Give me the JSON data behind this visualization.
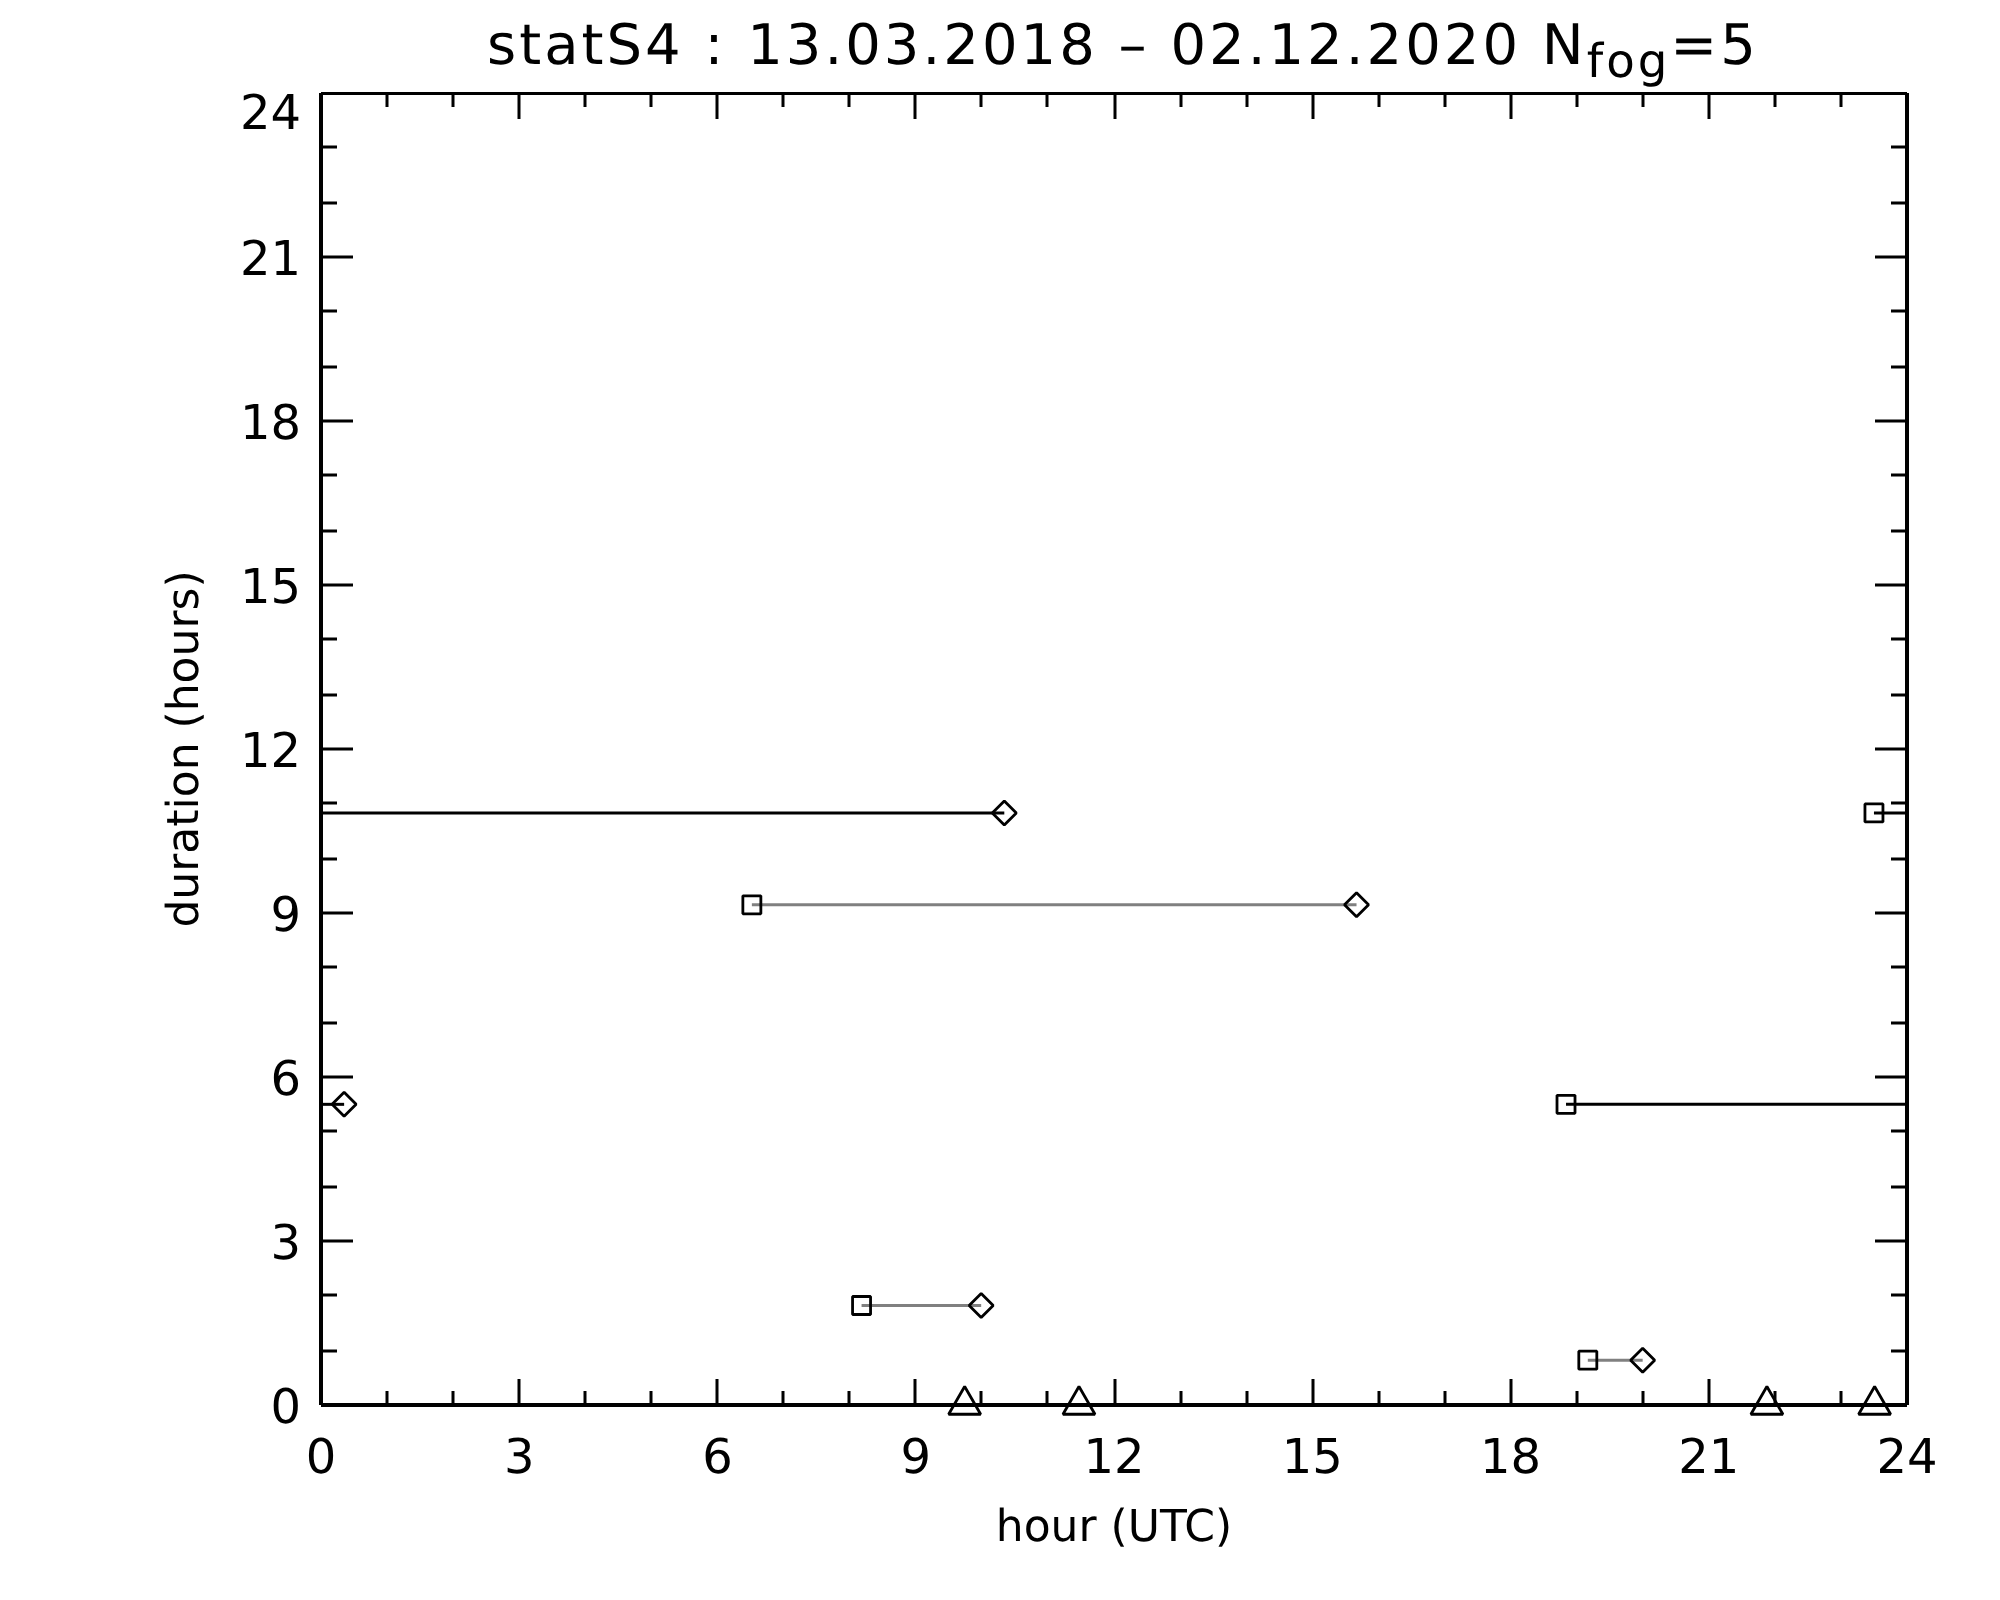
{
  "chart_data": {
    "type": "line",
    "title": "statS4 : 13.03.2018 – 02.12.2020 N$_{fog}$=5",
    "xlabel": "hour (UTC)",
    "ylabel": "duration (hours)",
    "xlim": [
      0,
      24
    ],
    "ylim": [
      0,
      24
    ],
    "xticks": [
      0,
      3,
      6,
      9,
      12,
      15,
      18,
      21,
      24
    ],
    "yticks": [
      0,
      3,
      6,
      9,
      12,
      15,
      18,
      21,
      24
    ],
    "series": [
      {
        "color": "#000000",
        "x": [
          23.5,
          24
        ],
        "values": [
          10.83,
          10.83
        ]
      },
      {
        "color": "#000000",
        "x": [
          0,
          10.34
        ],
        "values": [
          10.83,
          10.83
        ]
      },
      {
        "color": "#808080",
        "x": [
          6.52,
          15.67
        ],
        "values": [
          9.15,
          9.15
        ]
      },
      {
        "color": "#000000",
        "x": [
          18.84,
          24
        ],
        "values": [
          5.5,
          5.5
        ]
      },
      {
        "color": "#000000",
        "x": [
          0,
          0.35
        ],
        "values": [
          5.5,
          5.5
        ]
      },
      {
        "color": "#808080",
        "x": [
          8.18,
          9.99
        ],
        "values": [
          1.82,
          1.82
        ]
      },
      {
        "color": "#808080",
        "x": [
          19.17,
          20.0
        ],
        "values": [
          0.82,
          0.82
        ]
      },
      {
        "type": "scatter",
        "marker": "square",
        "color": "#000000",
        "x": [
          23.5,
          6.52,
          18.84,
          8.18,
          19.17
        ],
        "values": [
          10.83,
          9.15,
          5.5,
          1.82,
          0.82
        ]
      },
      {
        "type": "scatter",
        "marker": "diamond",
        "color": "#000000",
        "x": [
          10.34,
          15.67,
          0.35,
          9.99,
          20.0
        ],
        "values": [
          10.83,
          9.15,
          5.5,
          1.82,
          0.82
        ]
      },
      {
        "type": "scatter",
        "marker": "triangle",
        "color": "#000000",
        "x": [
          9.74,
          11.47,
          21.88,
          23.51
        ],
        "values": [
          0,
          0,
          0,
          0
        ]
      }
    ]
  }
}
